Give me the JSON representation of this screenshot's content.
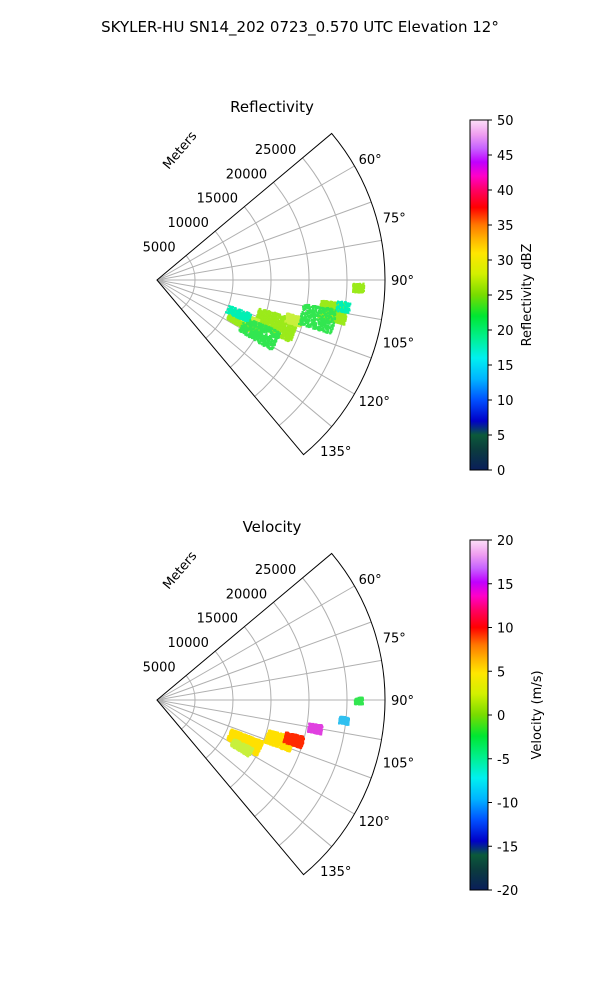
{
  "title": "SKYLER-HU  SN14_202  0723_0.570 UTC Elevation 12°",
  "chart_data": [
    {
      "type": "polar-sector",
      "title": "Reflectivity",
      "radial_label": "Meters",
      "range_ticks": [
        "5000",
        "10000",
        "15000",
        "20000",
        "25000"
      ],
      "angle_ticks": [
        "60°",
        "75°",
        "90°",
        "105°",
        "120°",
        "135°"
      ],
      "angle_range_deg": [
        50,
        140
      ],
      "range_max_m": 30000,
      "colorbar": {
        "label": "Reflectivity dBZ",
        "range": [
          0,
          50
        ],
        "ticks": [
          "0",
          "5",
          "10",
          "15",
          "20",
          "25",
          "30",
          "35",
          "40",
          "45",
          "50"
        ],
        "colormap": "pyart_HomeyerRainbow"
      }
    },
    {
      "type": "polar-sector",
      "title": "Velocity",
      "radial_label": "Meters",
      "range_ticks": [
        "5000",
        "10000",
        "15000",
        "20000",
        "25000"
      ],
      "angle_ticks": [
        "60°",
        "75°",
        "90°",
        "105°",
        "120°",
        "135°"
      ],
      "angle_range_deg": [
        50,
        140
      ],
      "range_max_m": 30000,
      "colorbar": {
        "label": "Velocity (m/s)",
        "range": [
          -20,
          20
        ],
        "ticks": [
          "-20",
          "-15",
          "-10",
          "-5",
          "0",
          "5",
          "10",
          "15",
          "20"
        ],
        "colormap": "pyart_HomeyerRainbow"
      }
    }
  ]
}
